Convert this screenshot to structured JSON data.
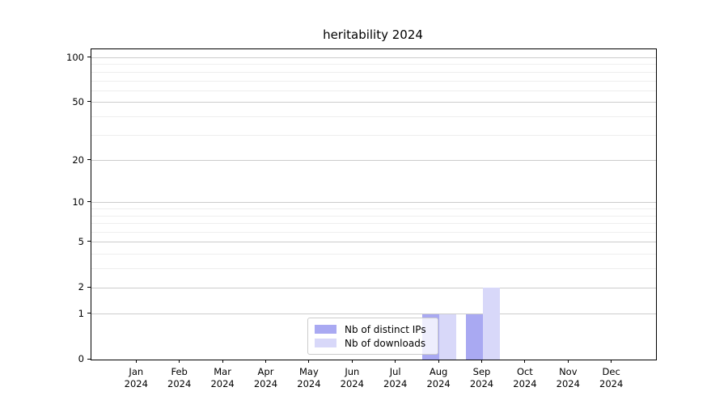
{
  "chart_data": {
    "type": "bar",
    "title": "heritability 2024",
    "categories": [
      "Jan",
      "Feb",
      "Mar",
      "Apr",
      "May",
      "Jun",
      "Jul",
      "Aug",
      "Sep",
      "Oct",
      "Nov",
      "Dec"
    ],
    "year_suffix": "2024",
    "series": [
      {
        "name": "Nb of distinct IPs",
        "color": "#a9a9f2",
        "values": [
          0,
          0,
          0,
          0,
          0,
          0,
          0,
          1,
          1,
          0,
          0,
          0
        ]
      },
      {
        "name": "Nb of downloads",
        "color": "#d8d8f9",
        "values": [
          0,
          0,
          0,
          0,
          0,
          0,
          0,
          1,
          2,
          0,
          0,
          0
        ]
      }
    ],
    "yscale": "log1p",
    "ylim": [
      0,
      114
    ],
    "y_major_ticks": [
      0,
      1,
      2,
      5,
      10,
      20,
      50,
      100
    ],
    "y_minor_gridlines": [
      3,
      4,
      6,
      7,
      8,
      9,
      30,
      40,
      60,
      70,
      80,
      90
    ],
    "xlabel": "",
    "ylabel": "",
    "grid": "horizontal",
    "legend_position": "lower-center-inside",
    "colors": {
      "major_grid": "#cccccc",
      "minor_grid": "#eeeeee",
      "axis": "#000000"
    }
  }
}
